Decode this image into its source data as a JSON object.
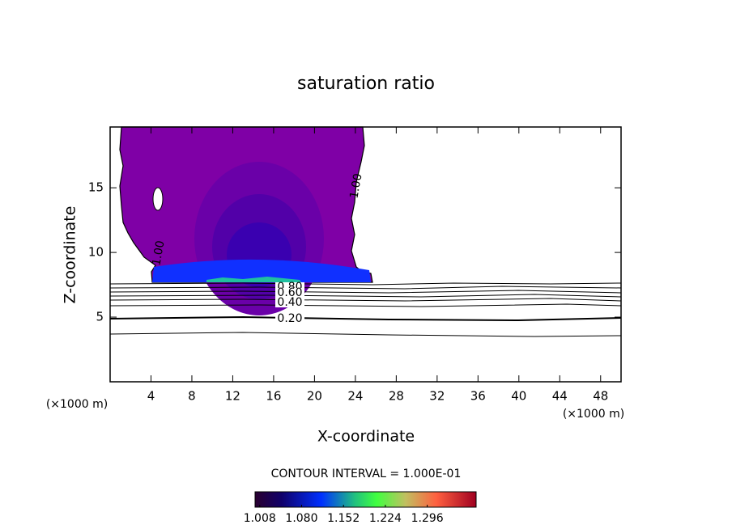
{
  "chart_data": {
    "type": "contour",
    "title": "saturation ratio",
    "x_label": "X-coordinate",
    "y_label": "Z-coordinate",
    "x_unit": "(×1000 m)",
    "y_unit": "(×1000 m)",
    "xlim": [
      0,
      50
    ],
    "ylim": [
      0,
      19.7
    ],
    "xticks": [
      4,
      8,
      12,
      16,
      20,
      24,
      28,
      32,
      36,
      40,
      44,
      48
    ],
    "yticks": [
      5,
      10,
      15
    ],
    "contour_labels": [
      {
        "value": 1.0,
        "label": "1.00"
      },
      {
        "value": 1.0,
        "label": "1.00"
      },
      {
        "value": 0.8,
        "label": "0.80"
      },
      {
        "value": 0.6,
        "label": "0.60"
      },
      {
        "value": 0.4,
        "label": "0.40"
      },
      {
        "value": 0.2,
        "label": "0.20"
      }
    ],
    "contour_interval": "CONTOUR INTERVAL = 1.000E-01",
    "colorbar_lim": [
      1.0,
      1.38
    ],
    "colorbar_ticks": [
      1.008,
      {
        "value": 1.08,
        "label": "1.080"
      },
      1.152,
      1.224,
      1.296
    ]
  }
}
